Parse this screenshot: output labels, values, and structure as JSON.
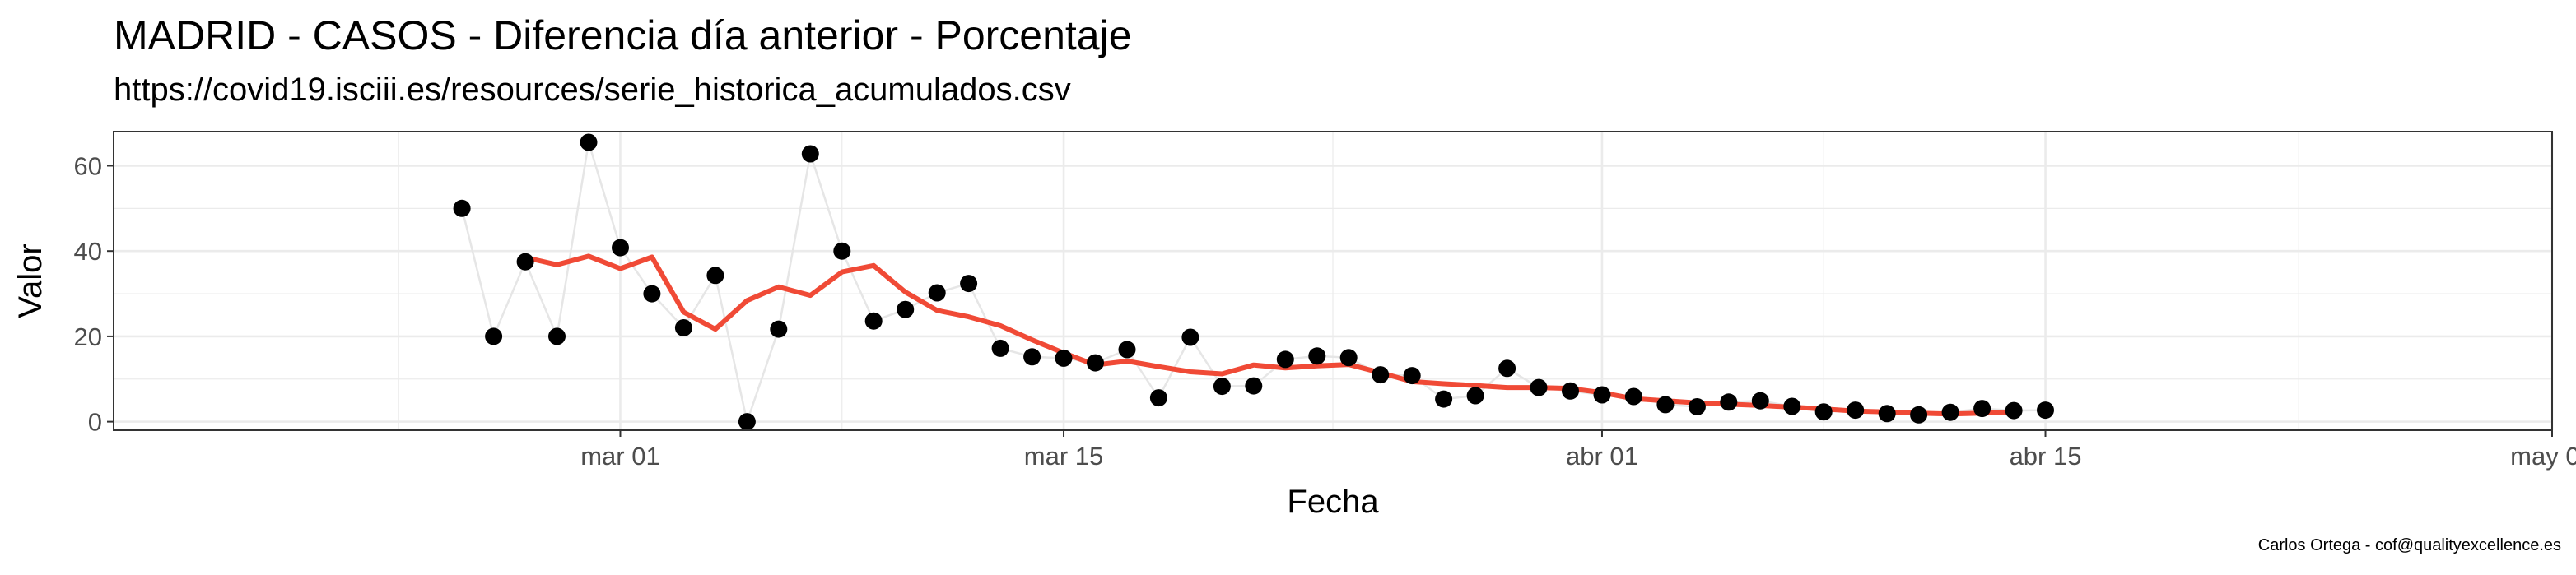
{
  "title": "MADRID - CASOS - Diferencia día anterior - Porcentaje",
  "subtitle": "https://covid19.isciii.es/resources/serie_historica_acumulados.csv",
  "caption": "Carlos Ortega - cof@qualityexcellence.es",
  "chart_data": {
    "type": "line",
    "xlabel": "Fecha",
    "ylabel": "Valor",
    "xlim": [
      "2020-02-14",
      "2020-05-01"
    ],
    "ylim": [
      -2,
      68
    ],
    "x_ticks": [
      {
        "date": "2020-03-01",
        "label": "mar 01"
      },
      {
        "date": "2020-03-15",
        "label": "mar 15"
      },
      {
        "date": "2020-04-01",
        "label": "abr 01"
      },
      {
        "date": "2020-04-15",
        "label": "abr 15"
      },
      {
        "date": "2020-05-01",
        "label": "may 01"
      }
    ],
    "y_ticks": [
      0,
      20,
      40,
      60
    ],
    "grid": true,
    "colors": {
      "points": "#000000",
      "raw_line": "#e6e6e6",
      "smooth_line": "#f04a36",
      "grid": "#ebebeb",
      "panel_border": "#333333"
    },
    "series": [
      {
        "type": "scatter+line",
        "points": [
          [
            "2020-02-25",
            50.0
          ],
          [
            "2020-02-26",
            20.0
          ],
          [
            "2020-02-27",
            37.5
          ],
          [
            "2020-02-28",
            20.0
          ],
          [
            "2020-02-29",
            65.5
          ],
          [
            "2020-03-01",
            40.8
          ],
          [
            "2020-03-02",
            30.0
          ],
          [
            "2020-03-03",
            22.0
          ],
          [
            "2020-03-04",
            34.3
          ],
          [
            "2020-03-05",
            0.0
          ],
          [
            "2020-03-06",
            21.7
          ],
          [
            "2020-03-07",
            62.8
          ],
          [
            "2020-03-08",
            40.0
          ],
          [
            "2020-03-09",
            23.6
          ],
          [
            "2020-03-10",
            26.3
          ],
          [
            "2020-03-11",
            30.2
          ],
          [
            "2020-03-12",
            32.4
          ],
          [
            "2020-03-13",
            17.2
          ],
          [
            "2020-03-14",
            15.2
          ],
          [
            "2020-03-15",
            14.9
          ],
          [
            "2020-03-16",
            13.8
          ],
          [
            "2020-03-17",
            16.9
          ],
          [
            "2020-03-18",
            5.6
          ],
          [
            "2020-03-19",
            19.8
          ],
          [
            "2020-03-20",
            8.3
          ],
          [
            "2020-03-21",
            8.4
          ],
          [
            "2020-03-22",
            14.6
          ],
          [
            "2020-03-23",
            15.4
          ],
          [
            "2020-03-24",
            15.0
          ],
          [
            "2020-03-25",
            11.0
          ],
          [
            "2020-03-26",
            10.8
          ],
          [
            "2020-03-27",
            5.3
          ],
          [
            "2020-03-28",
            6.1
          ],
          [
            "2020-03-29",
            12.5
          ],
          [
            "2020-03-30",
            8.0
          ],
          [
            "2020-03-31",
            7.2
          ],
          [
            "2020-04-01",
            6.3
          ],
          [
            "2020-04-02",
            5.9
          ],
          [
            "2020-04-03",
            4.0
          ],
          [
            "2020-04-04",
            3.5
          ],
          [
            "2020-04-05",
            4.6
          ],
          [
            "2020-04-06",
            4.9
          ],
          [
            "2020-04-07",
            3.6
          ],
          [
            "2020-04-08",
            2.3
          ],
          [
            "2020-04-09",
            2.7
          ],
          [
            "2020-04-10",
            1.9
          ],
          [
            "2020-04-11",
            1.6
          ],
          [
            "2020-04-12",
            2.2
          ],
          [
            "2020-04-13",
            3.1
          ],
          [
            "2020-04-14",
            2.6
          ],
          [
            "2020-04-15",
            2.7
          ]
        ]
      },
      {
        "type": "line",
        "points": [
          [
            "2020-02-27",
            38.5
          ],
          [
            "2020-02-28",
            36.8
          ],
          [
            "2020-02-29",
            38.8
          ],
          [
            "2020-03-01",
            35.9
          ],
          [
            "2020-03-02",
            38.6
          ],
          [
            "2020-03-03",
            25.7
          ],
          [
            "2020-03-04",
            21.7
          ],
          [
            "2020-03-05",
            28.4
          ],
          [
            "2020-03-06",
            31.6
          ],
          [
            "2020-03-07",
            29.6
          ],
          [
            "2020-03-08",
            35.1
          ],
          [
            "2020-03-09",
            36.6
          ],
          [
            "2020-03-10",
            30.4
          ],
          [
            "2020-03-11",
            26.1
          ],
          [
            "2020-03-12",
            24.6
          ],
          [
            "2020-03-13",
            22.5
          ],
          [
            "2020-03-14",
            19.2
          ],
          [
            "2020-03-15",
            16.1
          ],
          [
            "2020-03-16",
            13.3
          ],
          [
            "2020-03-17",
            14.2
          ],
          [
            "2020-03-18",
            12.9
          ],
          [
            "2020-03-19",
            11.7
          ],
          [
            "2020-03-20",
            11.2
          ],
          [
            "2020-03-21",
            13.3
          ],
          [
            "2020-03-22",
            12.6
          ],
          [
            "2020-03-23",
            13.1
          ],
          [
            "2020-03-24",
            13.4
          ],
          [
            "2020-03-25",
            11.5
          ],
          [
            "2020-03-26",
            9.4
          ],
          [
            "2020-03-27",
            8.9
          ],
          [
            "2020-03-28",
            8.5
          ],
          [
            "2020-03-29",
            8.0
          ],
          [
            "2020-03-30",
            8.0
          ],
          [
            "2020-03-31",
            7.8
          ],
          [
            "2020-04-01",
            6.8
          ],
          [
            "2020-04-02",
            5.4
          ],
          [
            "2020-04-03",
            4.9
          ],
          [
            "2020-04-04",
            4.4
          ],
          [
            "2020-04-05",
            4.1
          ],
          [
            "2020-04-06",
            3.8
          ],
          [
            "2020-04-07",
            3.4
          ],
          [
            "2020-04-08",
            3.0
          ],
          [
            "2020-04-09",
            2.5
          ],
          [
            "2020-04-10",
            2.3
          ],
          [
            "2020-04-11",
            2.0
          ],
          [
            "2020-04-12",
            1.8
          ],
          [
            "2020-04-13",
            2.0
          ],
          [
            "2020-04-14",
            2.2
          ]
        ]
      }
    ]
  }
}
